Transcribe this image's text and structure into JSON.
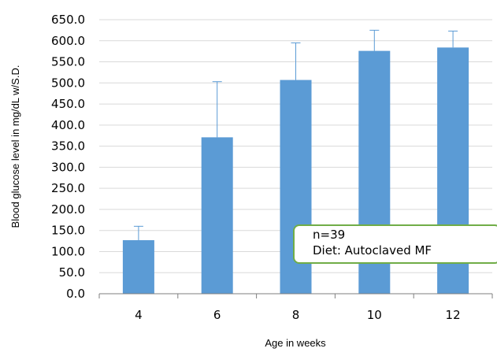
{
  "chart_data": {
    "type": "bar",
    "title": "",
    "xlabel": "Age in weeks",
    "ylabel": "Blood glucose level in mg/dL w/S.D.",
    "categories": [
      "4",
      "6",
      "8",
      "10",
      "12"
    ],
    "series": [
      {
        "values": [
          127,
          371,
          507,
          576,
          584
        ],
        "error_plus": [
          33,
          132,
          88,
          49,
          39
        ]
      }
    ],
    "ylim": [
      0,
      650
    ],
    "yticks": [
      "0.0",
      "50.0",
      "100.0",
      "150.0",
      "200.0",
      "250.0",
      "300.0",
      "350.0",
      "400.0",
      "450.0",
      "500.0",
      "550.0",
      "600.0",
      "650.0"
    ],
    "grid": true,
    "legend": "none",
    "annotation": {
      "lines": [
        "n=39",
        "Diet: Autoclaved MF"
      ],
      "border_color": "#70ad47"
    },
    "colors": {
      "bar": "#5b9bd5",
      "grid": "#d9d9d9",
      "axis": "#7f7f7f"
    }
  }
}
